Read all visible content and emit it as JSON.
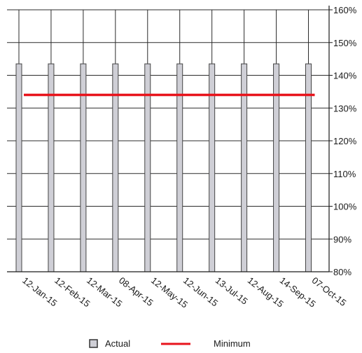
{
  "chart_data": {
    "type": "bar",
    "categories": [
      "12-Jan-15",
      "12-Feb-15",
      "12-Mar-15",
      "08-Apr-15",
      "12-May-15",
      "12-Jun-15",
      "13-Jul-15",
      "12-Aug-15",
      "14-Sep-15",
      "07-Oct-15"
    ],
    "series": [
      {
        "name": "Actual",
        "type": "bar",
        "values": [
          143.5,
          143.5,
          143.5,
          143.5,
          143.5,
          143.5,
          143.5,
          143.5,
          143.5,
          143.5
        ],
        "color": "#cfcfd6"
      },
      {
        "name": "Minimum",
        "type": "line",
        "values": [
          134,
          134,
          134,
          134,
          134,
          134,
          134,
          134,
          134,
          134
        ],
        "color": "#e8141c"
      }
    ],
    "title": "",
    "xlabel": "",
    "ylabel": "",
    "ylim": [
      80,
      160
    ],
    "yticks": [
      "80%",
      "90%",
      "100%",
      "110%",
      "120%",
      "130%",
      "140%",
      "150%",
      "160%"
    ],
    "grid": true,
    "legend": "bottom"
  }
}
